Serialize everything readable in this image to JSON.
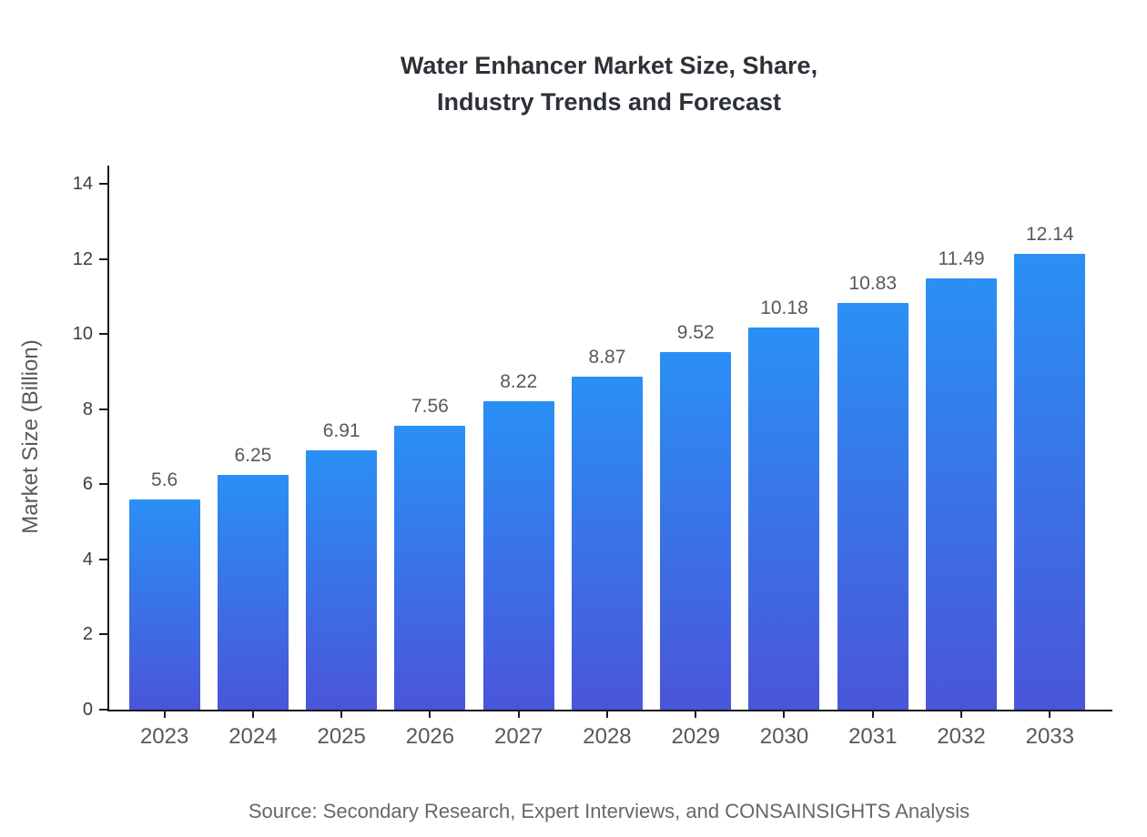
{
  "title": {
    "line1": "Water Enhancer Market Size, Share,",
    "line2": "Industry Trends and Forecast"
  },
  "source": "Source: Secondary Research, Expert Interviews, and CONSAINSIGHTS Analysis",
  "chart_data": {
    "type": "bar",
    "title": "Water Enhancer Market Size, Share, Industry Trends and Forecast",
    "categories": [
      "2023",
      "2024",
      "2025",
      "2026",
      "2027",
      "2028",
      "2029",
      "2030",
      "2031",
      "2032",
      "2033"
    ],
    "values": [
      5.6,
      6.25,
      6.91,
      7.56,
      8.22,
      8.87,
      9.52,
      10.18,
      10.83,
      11.49,
      12.14
    ],
    "value_labels": [
      "5.6",
      "6.25",
      "6.91",
      "7.56",
      "8.22",
      "8.87",
      "9.52",
      "10.18",
      "10.83",
      "11.49",
      "12.14"
    ],
    "xlabel": "",
    "ylabel": "Market Size (Billion)",
    "ylim": [
      0,
      14
    ],
    "yticks": [
      0,
      2,
      4,
      6,
      8,
      10,
      12,
      14
    ],
    "grid": false,
    "legend": false,
    "bar_color_top": "#2a90f5",
    "bar_color_bottom": "#4a55d9",
    "axis_color": "#16181c"
  }
}
